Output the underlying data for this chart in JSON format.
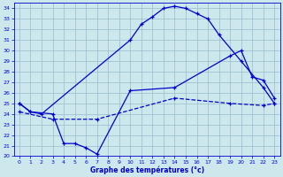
{
  "xlabel": "Graphe des températures (°c)",
  "bg_color": "#cce8ed",
  "line_color": "#0000cc",
  "grid_color": "#99bbcc",
  "xlim": [
    -0.5,
    23.5
  ],
  "ylim": [
    20,
    34.5
  ],
  "yticks": [
    20,
    21,
    22,
    23,
    24,
    25,
    26,
    27,
    28,
    29,
    30,
    31,
    32,
    33,
    34
  ],
  "xticks": [
    0,
    1,
    2,
    3,
    4,
    5,
    6,
    7,
    8,
    9,
    10,
    11,
    12,
    13,
    14,
    15,
    16,
    17,
    18,
    19,
    20,
    21,
    22,
    23
  ],
  "line1_x": [
    0,
    1,
    2,
    10,
    11,
    12,
    13,
    14,
    15,
    16,
    17,
    18,
    20,
    22,
    23
  ],
  "line1_y": [
    25.0,
    24.2,
    24.0,
    31.0,
    32.5,
    33.2,
    34.0,
    34.2,
    34.0,
    33.5,
    33.0,
    31.5,
    29.0,
    26.5,
    25.0
  ],
  "line2_x": [
    0,
    1,
    3,
    4,
    5,
    6,
    7,
    10,
    14,
    19,
    20,
    21,
    22,
    23
  ],
  "line2_y": [
    25.0,
    24.2,
    24.0,
    21.2,
    21.2,
    20.8,
    20.2,
    26.2,
    26.5,
    29.5,
    30.0,
    27.5,
    27.2,
    25.5
  ],
  "line3_x": [
    0,
    3,
    7,
    14,
    19,
    22,
    23
  ],
  "line3_y": [
    24.2,
    23.5,
    23.5,
    25.5,
    25.0,
    24.8,
    25.0
  ]
}
